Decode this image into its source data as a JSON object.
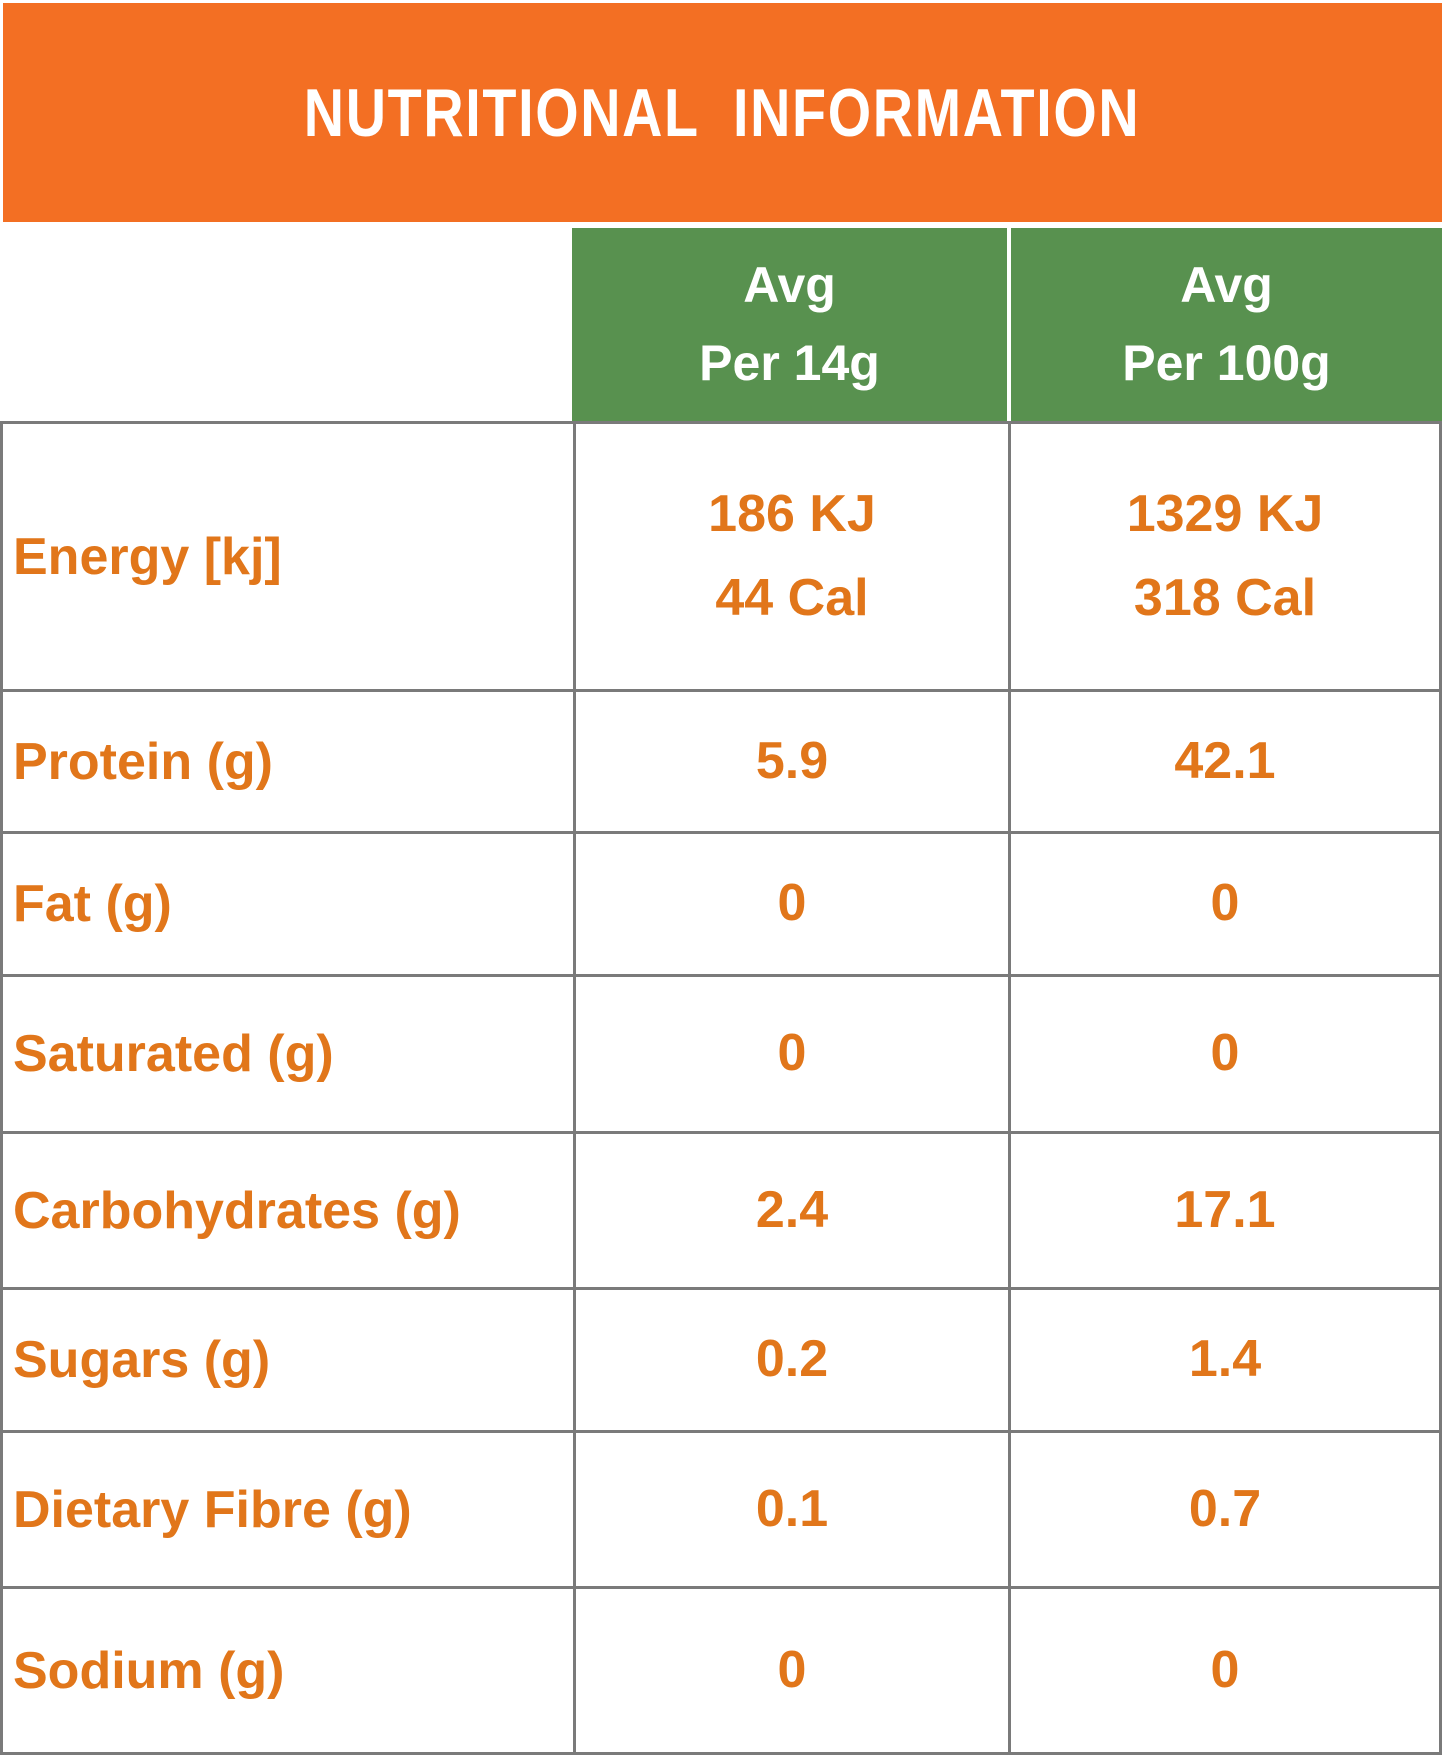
{
  "title": "NUTRITIONAL  INFORMATION",
  "column_headers": {
    "per14": "Avg\nPer 14g",
    "per100": "Avg\nPer 100g"
  },
  "table": {
    "rows": [
      {
        "label": "Energy [kj]",
        "per14": "186 KJ\n44 Cal",
        "per100": "1329 KJ\n318 Cal"
      },
      {
        "label": "Protein (g)",
        "per14": "5.9",
        "per100": "42.1"
      },
      {
        "label": "Fat (g)",
        "per14": "0",
        "per100": "0"
      },
      {
        "label": "Saturated (g)",
        "per14": "0",
        "per100": "0"
      },
      {
        "label": "Carbohydrates (g)",
        "per14": "2.4",
        "per100": "17.1"
      },
      {
        "label": "Sugars (g)",
        "per14": "0.2",
        "per100": "1.4"
      },
      {
        "label": "Dietary Fibre (g)",
        "per14": "0.1",
        "per100": "0.7"
      },
      {
        "label": "Sodium (g)",
        "per14": "0",
        "per100": "0"
      }
    ]
  },
  "colors": {
    "banner_orange": "#F36F23",
    "header_green": "#58914F",
    "text_orange": "#E1761A",
    "border_gray": "#7A7A7A",
    "title_white": "#FFFFFF"
  }
}
